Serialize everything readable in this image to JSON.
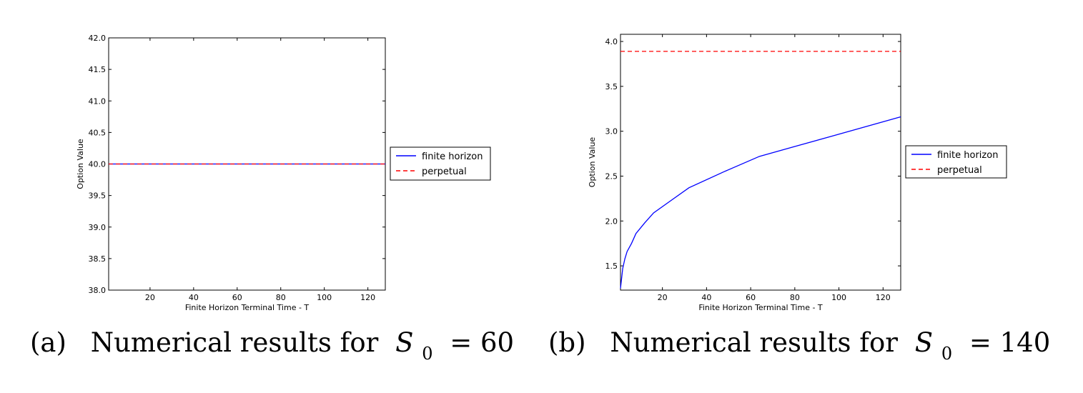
{
  "chart_data": [
    {
      "type": "line",
      "xlabel": "Finite Horizon Terminal Time - T",
      "ylabel": "Option Value",
      "xlim": [
        1,
        128
      ],
      "ylim": [
        38.0,
        42.0
      ],
      "xticks": [
        20,
        40,
        60,
        80,
        100,
        120
      ],
      "yticks": [
        38.0,
        38.5,
        39.0,
        39.5,
        40.0,
        40.5,
        41.0,
        41.5,
        42.0
      ],
      "x_tick_labels": [
        "20",
        "40",
        "60",
        "80",
        "100",
        "120"
      ],
      "y_tick_labels": [
        "38.0",
        "38.5",
        "39.0",
        "39.5",
        "40.0",
        "40.5",
        "41.0",
        "41.5",
        "42.0"
      ],
      "series": [
        {
          "name": "finite horizon",
          "color": "#0000ff",
          "style": "solid",
          "x": [
            1,
            128
          ],
          "y": [
            40.0,
            40.0
          ]
        },
        {
          "name": "perpetual",
          "color": "#ff0000",
          "style": "dashed",
          "x": [
            1,
            128
          ],
          "y": [
            40.0,
            40.0
          ]
        }
      ],
      "legend": "outside-right",
      "grid": false,
      "caption": {
        "label": "(a)",
        "text": "Numerical results for",
        "var": "S",
        "sub": "0",
        "rel": "= 60"
      }
    },
    {
      "type": "line",
      "xlabel": "Finite Horizon Terminal Time - T",
      "ylabel": "Option Value",
      "xlim": [
        1,
        128
      ],
      "ylim": [
        1.23,
        4.08
      ],
      "xticks": [
        20,
        40,
        60,
        80,
        100,
        120
      ],
      "yticks": [
        1.5,
        2.0,
        2.5,
        3.0,
        3.5,
        4.0
      ],
      "x_tick_labels": [
        "20",
        "40",
        "60",
        "80",
        "100",
        "120"
      ],
      "y_tick_labels": [
        "1.5",
        "2.0",
        "2.5",
        "3.0",
        "3.5",
        "4.0"
      ],
      "series": [
        {
          "name": "finite horizon",
          "color": "#0000ff",
          "style": "solid",
          "x": [
            1,
            2,
            3,
            4,
            6,
            8,
            12,
            16,
            24,
            32,
            48,
            64,
            80,
            96,
            112,
            128
          ],
          "y": [
            1.25,
            1.47,
            1.58,
            1.66,
            1.75,
            1.86,
            1.98,
            2.09,
            2.23,
            2.37,
            2.55,
            2.72,
            2.83,
            2.94,
            3.05,
            3.16
          ]
        },
        {
          "name": "perpetual",
          "color": "#ff0000",
          "style": "dashed",
          "x": [
            1,
            128
          ],
          "y": [
            3.89,
            3.89
          ]
        }
      ],
      "legend": "outside-right",
      "grid": false,
      "caption": {
        "label": "(b)",
        "text": "Numerical results for",
        "var": "S",
        "sub": "0",
        "rel": "= 140"
      }
    }
  ]
}
